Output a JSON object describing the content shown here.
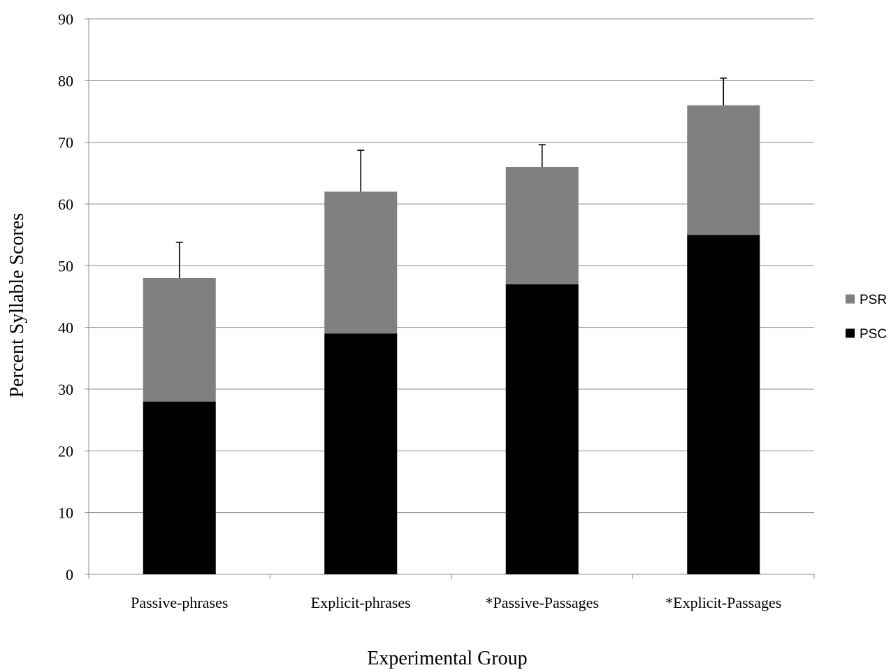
{
  "chart_data": {
    "type": "bar",
    "stacked": true,
    "title": "",
    "xlabel": "Experimental Group",
    "ylabel": "Percent Syllable Scores",
    "ylim": [
      0,
      90
    ],
    "yticks": [
      0,
      10,
      20,
      30,
      40,
      50,
      60,
      70,
      80,
      90
    ],
    "grid": "horizontal",
    "legend_position": "right",
    "categories": [
      "Passive-phrases",
      "Explicit-phrases",
      "*Passive-Passages",
      "*Explicit-Passages"
    ],
    "series": [
      {
        "name": "PSC",
        "values": [
          28,
          39,
          47,
          55
        ],
        "color": "#000000"
      },
      {
        "name": "PSR",
        "values": [
          20,
          23,
          19,
          21
        ],
        "color": "#808080"
      }
    ],
    "legend_order": [
      "PSR",
      "PSC"
    ],
    "error_bars_upper": [
      53.8,
      68.7,
      69.6,
      80.4
    ]
  }
}
